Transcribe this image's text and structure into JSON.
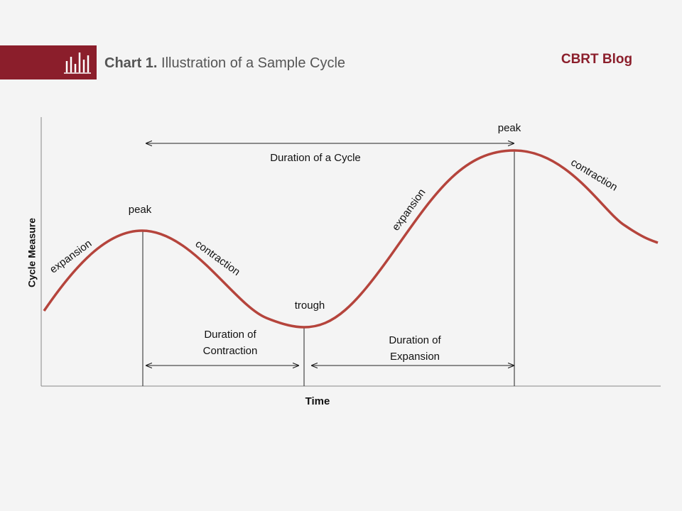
{
  "header": {
    "chart_label": "Chart 1.",
    "title": "Illustration of a Sample Cycle",
    "brand": "CBRT Blog"
  },
  "axes": {
    "y_label": "Cycle Measure",
    "x_label": "Time"
  },
  "curve_labels": [
    "expansion",
    "peak",
    "contraction",
    "trough",
    "expansion",
    "peak",
    "contraction"
  ],
  "durations": {
    "cycle": "Duration of a Cycle",
    "contraction": [
      "Duration of",
      "Contraction"
    ],
    "expansion": [
      "Duration of",
      "Expansion"
    ]
  }
}
